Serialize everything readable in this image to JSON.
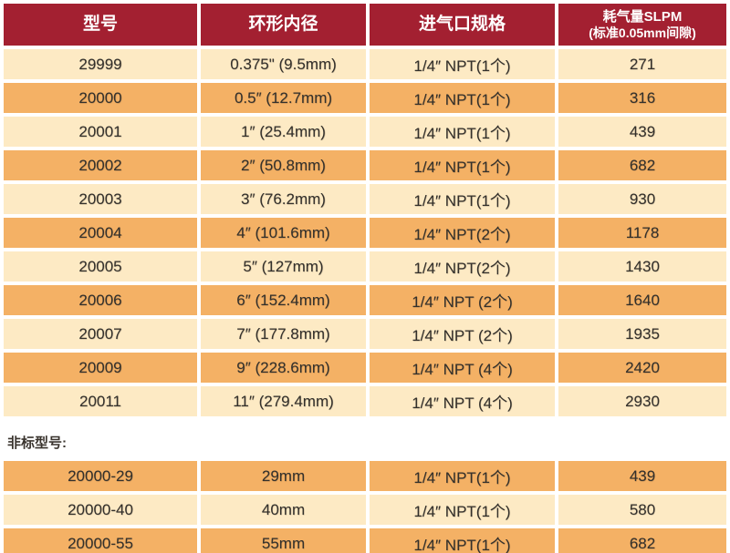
{
  "colors": {
    "page_bg": "#FFFFFF",
    "header_bg": "#A32031",
    "header_text": "#FFFFFF",
    "row_cream": "#FDEAC4",
    "row_orange": "#F4B165",
    "cell_text": "#33302B"
  },
  "main_table": {
    "headers": [
      {
        "label": "型号"
      },
      {
        "label": "环形内径"
      },
      {
        "label": "进气口规格"
      },
      {
        "label": "耗气量SLPM",
        "sublabel": "(标准0.05mm间隙)"
      }
    ],
    "rows": [
      [
        "29999",
        "0.375\" (9.5mm)",
        "1/4″ NPT(1个)",
        "271"
      ],
      [
        "20000",
        "0.5″ (12.7mm)",
        "1/4″ NPT(1个)",
        "316"
      ],
      [
        "20001",
        "1″ (25.4mm)",
        "1/4″ NPT(1个)",
        "439"
      ],
      [
        "20002",
        "2″ (50.8mm)",
        "1/4″ NPT(1个)",
        "682"
      ],
      [
        "20003",
        "3″ (76.2mm)",
        "1/4″ NPT(1个)",
        "930"
      ],
      [
        "20004",
        "4″ (101.6mm)",
        "1/4″ NPT(2个)",
        "1178"
      ],
      [
        "20005",
        "5″ (127mm)",
        "1/4″ NPT(2个)",
        "1430"
      ],
      [
        "20006",
        "6″ (152.4mm)",
        "1/4″ NPT (2个)",
        "1640"
      ],
      [
        "20007",
        "7″ (177.8mm)",
        "1/4″ NPT (2个)",
        "1935"
      ],
      [
        "20009",
        "9″ (228.6mm)",
        "1/4″ NPT (4个)",
        "2420"
      ],
      [
        "20011",
        "11″ (279.4mm)",
        "1/4″ NPT (4个)",
        "2930"
      ]
    ]
  },
  "section_label": "非标型号:",
  "bottom_table": {
    "rows": [
      [
        "20000-29",
        "29mm",
        "1/4″ NPT(1个)",
        "439"
      ],
      [
        "20000-40",
        "40mm",
        "1/4″ NPT(1个)",
        "580"
      ],
      [
        "20000-55",
        "55mm",
        "1/4″ NPT(1个)",
        "682"
      ]
    ]
  }
}
